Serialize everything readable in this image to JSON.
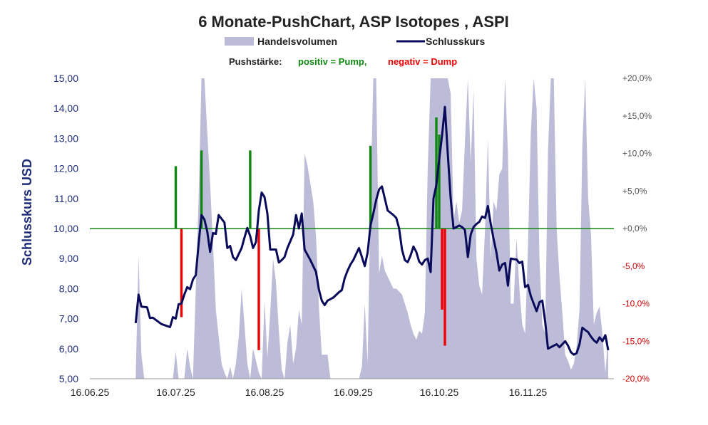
{
  "chart_data": {
    "type": "line",
    "title": "6 Monate-PushChart, ASP Isotopes , ASPI",
    "legend": {
      "volume_label": "Handelsvolumen",
      "price_label": "Schlusskurs",
      "push_prefix": "Pushstärke:",
      "push_positive": "positiv = Pump,",
      "push_negative": "negativ = Dump"
    },
    "colors": {
      "volume": "#bcbcd9",
      "price": "#0a0a5a",
      "pump": "#118811",
      "dump": "#ee0000",
      "zero_line": "#118811",
      "left_axis": "#1f2d7a"
    },
    "ylabel": "Schlusskurs USD",
    "ylim": [
      5,
      15
    ],
    "y_ticks": [
      "5,00",
      "6,00",
      "7,00",
      "8,00",
      "9,00",
      "10,00",
      "11,00",
      "12,00",
      "13,00",
      "14,00",
      "15,00"
    ],
    "y2lim": [
      -20,
      20
    ],
    "y2_ticks": [
      "-20,0%",
      "-15,0%",
      "-10,0%",
      "-5,0%",
      "+0,0%",
      "+5,0%",
      "+10,0%",
      "+15,0%",
      "+20,0%"
    ],
    "x_ticks": [
      "16.06.25",
      "16.07.25",
      "16.08.25",
      "16.09.25",
      "16.10.25",
      "16.11.25"
    ],
    "x_range_days": [
      0,
      183
    ],
    "price": {
      "name": "Schlusskurs",
      "points": [
        [
          16,
          6.85
        ],
        [
          17,
          7.8
        ],
        [
          18,
          7.4
        ],
        [
          20,
          7.38
        ],
        [
          21,
          7.02
        ],
        [
          22,
          7.03
        ],
        [
          25,
          6.82
        ],
        [
          28,
          6.72
        ],
        [
          29,
          7.05
        ],
        [
          30,
          7.0
        ],
        [
          31,
          7.48
        ],
        [
          32,
          7.5
        ],
        [
          33,
          7.8
        ],
        [
          34,
          8.05
        ],
        [
          35,
          7.98
        ],
        [
          36,
          8.3
        ],
        [
          37,
          8.45
        ],
        [
          38,
          9.5
        ],
        [
          39,
          10.45
        ],
        [
          40,
          10.3
        ],
        [
          41,
          9.9
        ],
        [
          42,
          9.22
        ],
        [
          43,
          9.85
        ],
        [
          44,
          9.82
        ],
        [
          45,
          10.45
        ],
        [
          47,
          10.2
        ],
        [
          48,
          9.35
        ],
        [
          49,
          9.42
        ],
        [
          50,
          9.05
        ],
        [
          51,
          8.95
        ],
        [
          53,
          9.35
        ],
        [
          54,
          9.7
        ],
        [
          55,
          10.02
        ],
        [
          56,
          9.75
        ],
        [
          57,
          9.35
        ],
        [
          58,
          9.55
        ],
        [
          59,
          10.6
        ],
        [
          60,
          11.2
        ],
        [
          61,
          11.05
        ],
        [
          62,
          10.5
        ],
        [
          63,
          9.3
        ],
        [
          64,
          9.3
        ],
        [
          65,
          9.3
        ],
        [
          66,
          8.87
        ],
        [
          67,
          8.95
        ],
        [
          68,
          9.05
        ],
        [
          69,
          9.35
        ],
        [
          71,
          9.8
        ],
        [
          72,
          10.45
        ],
        [
          73,
          10.0
        ],
        [
          74,
          10.5
        ],
        [
          75,
          9.3
        ],
        [
          77,
          8.95
        ],
        [
          79,
          8.55
        ],
        [
          80,
          7.97
        ],
        [
          81,
          7.6
        ],
        [
          82,
          7.45
        ],
        [
          83,
          7.6
        ],
        [
          85,
          7.7
        ],
        [
          87,
          7.88
        ],
        [
          88,
          7.95
        ],
        [
          89,
          8.35
        ],
        [
          90,
          8.6
        ],
        [
          91,
          8.8
        ],
        [
          92,
          8.95
        ],
        [
          93,
          9.15
        ],
        [
          94,
          9.35
        ],
        [
          95,
          9.05
        ],
        [
          96,
          8.75
        ],
        [
          97,
          9.2
        ],
        [
          98,
          10.1
        ],
        [
          99,
          10.5
        ],
        [
          100,
          10.95
        ],
        [
          101,
          11.3
        ],
        [
          102,
          11.4
        ],
        [
          103,
          11.0
        ],
        [
          104,
          10.6
        ],
        [
          106,
          10.45
        ],
        [
          107,
          10.35
        ],
        [
          108,
          10.0
        ],
        [
          109,
          9.3
        ],
        [
          110,
          8.95
        ],
        [
          111,
          8.88
        ],
        [
          112,
          9.1
        ],
        [
          113,
          9.4
        ],
        [
          114,
          9.22
        ],
        [
          115,
          8.9
        ],
        [
          116,
          8.8
        ],
        [
          117,
          8.95
        ],
        [
          118,
          9.0
        ],
        [
          119,
          8.55
        ],
        [
          120,
          11.0
        ],
        [
          121,
          11.45
        ],
        [
          122,
          12.3
        ],
        [
          123,
          13.1
        ],
        [
          124,
          14.05
        ],
        [
          125,
          12.5
        ],
        [
          126,
          11.0
        ],
        [
          127,
          10.0
        ],
        [
          129,
          10.1
        ],
        [
          130,
          10.05
        ],
        [
          131,
          9.95
        ],
        [
          132,
          9.05
        ],
        [
          133,
          9.8
        ],
        [
          134,
          10.05
        ],
        [
          135,
          10.15
        ],
        [
          136,
          10.22
        ],
        [
          137,
          10.4
        ],
        [
          138,
          10.35
        ],
        [
          139,
          10.75
        ],
        [
          140,
          10.15
        ],
        [
          141,
          9.65
        ],
        [
          142,
          9.2
        ],
        [
          143,
          8.6
        ],
        [
          144,
          8.8
        ],
        [
          145,
          8.85
        ],
        [
          146,
          8.1
        ],
        [
          147,
          9.0
        ],
        [
          148,
          8.98
        ],
        [
          149,
          8.97
        ],
        [
          150,
          8.85
        ],
        [
          151,
          8.9
        ],
        [
          152,
          8.05
        ],
        [
          153,
          8.12
        ],
        [
          154,
          7.75
        ],
        [
          155,
          7.5
        ],
        [
          156,
          7.25
        ],
        [
          157,
          7.55
        ],
        [
          158,
          7.6
        ],
        [
          159,
          6.9
        ],
        [
          160,
          6.0
        ],
        [
          161,
          6.05
        ],
        [
          162,
          6.1
        ],
        [
          163,
          6.15
        ],
        [
          164,
          6.05
        ],
        [
          166,
          6.25
        ],
        [
          167,
          6.1
        ],
        [
          168,
          5.88
        ],
        [
          169,
          5.8
        ],
        [
          170,
          5.85
        ],
        [
          171,
          6.15
        ],
        [
          172,
          6.7
        ],
        [
          173,
          6.62
        ],
        [
          174,
          6.55
        ],
        [
          175,
          6.4
        ],
        [
          176,
          6.28
        ],
        [
          177,
          6.2
        ],
        [
          178,
          6.38
        ],
        [
          179,
          6.25
        ],
        [
          180,
          6.45
        ],
        [
          181,
          5.95
        ]
      ]
    },
    "volume": {
      "name": "Handelsvolumen",
      "unit_note": "relative volume, left-axis scale",
      "points": [
        [
          16,
          5.0
        ],
        [
          17,
          9.1
        ],
        [
          18,
          5.8
        ],
        [
          19,
          5.0
        ],
        [
          29,
          5.0
        ],
        [
          30,
          5.9
        ],
        [
          31,
          5.0
        ],
        [
          33,
          5.0
        ],
        [
          34,
          6.0
        ],
        [
          35,
          5.4
        ],
        [
          36,
          5.0
        ],
        [
          37,
          8.0
        ],
        [
          38,
          11.0
        ],
        [
          39,
          15.0
        ],
        [
          40,
          15.0
        ],
        [
          41,
          13.2
        ],
        [
          42,
          11.5
        ],
        [
          43,
          9.5
        ],
        [
          44,
          7.3
        ],
        [
          45,
          6.4
        ],
        [
          46,
          5.5
        ],
        [
          47,
          5.2
        ],
        [
          48,
          5.0
        ],
        [
          49,
          5.4
        ],
        [
          50,
          5.0
        ],
        [
          51,
          5.5
        ],
        [
          52,
          6.4
        ],
        [
          53,
          8.0
        ],
        [
          54,
          6.8
        ],
        [
          55,
          5.5
        ],
        [
          56,
          5.0
        ],
        [
          57,
          6.0
        ],
        [
          58,
          5.6
        ],
        [
          59,
          5.2
        ],
        [
          60,
          5.0
        ],
        [
          61,
          7.6
        ],
        [
          62,
          5.7
        ],
        [
          63,
          7.2
        ],
        [
          64,
          9.0
        ],
        [
          65,
          8.2
        ],
        [
          66,
          6.6
        ],
        [
          67,
          5.3
        ],
        [
          68,
          5.0
        ],
        [
          69,
          6.2
        ],
        [
          70,
          6.8
        ],
        [
          71,
          5.5
        ],
        [
          72,
          6.0
        ],
        [
          73,
          7.3
        ],
        [
          74,
          6.8
        ],
        [
          75,
          12.5
        ],
        [
          76,
          12.1
        ],
        [
          77,
          11.5
        ],
        [
          78,
          10.9
        ],
        [
          79,
          9.7
        ],
        [
          80,
          7.4
        ],
        [
          81,
          5.8
        ],
        [
          82,
          5.8
        ],
        [
          83,
          5.8
        ],
        [
          84,
          5.0
        ],
        [
          94,
          5.0
        ],
        [
          95,
          5.4
        ],
        [
          96,
          7.5
        ],
        [
          97,
          5.5
        ],
        [
          98,
          10.9
        ],
        [
          99,
          15.0
        ],
        [
          100,
          15.0
        ],
        [
          101,
          8.5
        ],
        [
          102,
          9.1
        ],
        [
          103,
          8.6
        ],
        [
          104,
          8.4
        ],
        [
          105,
          8.2
        ],
        [
          106,
          8.0
        ],
        [
          107,
          8.0
        ],
        [
          108,
          7.9
        ],
        [
          109,
          7.8
        ],
        [
          110,
          7.5
        ],
        [
          111,
          7.2
        ],
        [
          112,
          6.8
        ],
        [
          113,
          6.5
        ],
        [
          114,
          6.3
        ],
        [
          115,
          6.6
        ],
        [
          116,
          6.5
        ],
        [
          117,
          7.2
        ],
        [
          118,
          12.0
        ],
        [
          119,
          15.0
        ],
        [
          120,
          15.0
        ],
        [
          121,
          15.0
        ],
        [
          122,
          15.0
        ],
        [
          123,
          15.0
        ],
        [
          124,
          15.0
        ],
        [
          125,
          15.0
        ],
        [
          126,
          14.5
        ],
        [
          127,
          10.3
        ],
        [
          128,
          10.9
        ],
        [
          129,
          10.2
        ],
        [
          130,
          10.6
        ],
        [
          131,
          12.9
        ],
        [
          132,
          15.0
        ],
        [
          133,
          12.2
        ],
        [
          134,
          14.6
        ],
        [
          135,
          9.0
        ],
        [
          136,
          8.1
        ],
        [
          137,
          7.8
        ],
        [
          138,
          10.0
        ],
        [
          139,
          13.0
        ],
        [
          140,
          9.0
        ],
        [
          141,
          10.9
        ],
        [
          142,
          10.6
        ],
        [
          143,
          11.8
        ],
        [
          144,
          12.0
        ],
        [
          145,
          15.0
        ],
        [
          146,
          12.5
        ],
        [
          147,
          7.5
        ],
        [
          148,
          7.5
        ],
        [
          149,
          9.7
        ],
        [
          150,
          8.0
        ],
        [
          151,
          6.8
        ],
        [
          152,
          6.5
        ],
        [
          153,
          9.4
        ],
        [
          154,
          13.2
        ],
        [
          155,
          15.0
        ],
        [
          156,
          14.0
        ],
        [
          157,
          9.0
        ],
        [
          158,
          6.8
        ],
        [
          159,
          6.5
        ],
        [
          160,
          12.6
        ],
        [
          161,
          15.0
        ],
        [
          162,
          15.0
        ],
        [
          163,
          10.0
        ],
        [
          164,
          8.4
        ],
        [
          165,
          7.2
        ],
        [
          166,
          5.8
        ],
        [
          167,
          5.6
        ],
        [
          168,
          5.3
        ],
        [
          169,
          5.5
        ],
        [
          170,
          6.1
        ],
        [
          171,
          7.3
        ],
        [
          172,
          12.8
        ],
        [
          173,
          15.0
        ],
        [
          174,
          11.0
        ],
        [
          175,
          9.8
        ],
        [
          176,
          6.8
        ],
        [
          177,
          7.2
        ],
        [
          178,
          7.4
        ],
        [
          179,
          6.5
        ],
        [
          180,
          5.2
        ],
        [
          181,
          6.4
        ]
      ]
    },
    "push_bars": {
      "name": "Pushstärke",
      "unit": "%",
      "points": [
        [
          30,
          8.3
        ],
        [
          32,
          -11.8
        ],
        [
          39,
          10.4
        ],
        [
          56,
          10.4
        ],
        [
          59,
          -16.2
        ],
        [
          98,
          11.0
        ],
        [
          121,
          14.8
        ],
        [
          122,
          12.5
        ],
        [
          123,
          -10.8
        ],
        [
          124,
          -15.6
        ]
      ]
    }
  }
}
